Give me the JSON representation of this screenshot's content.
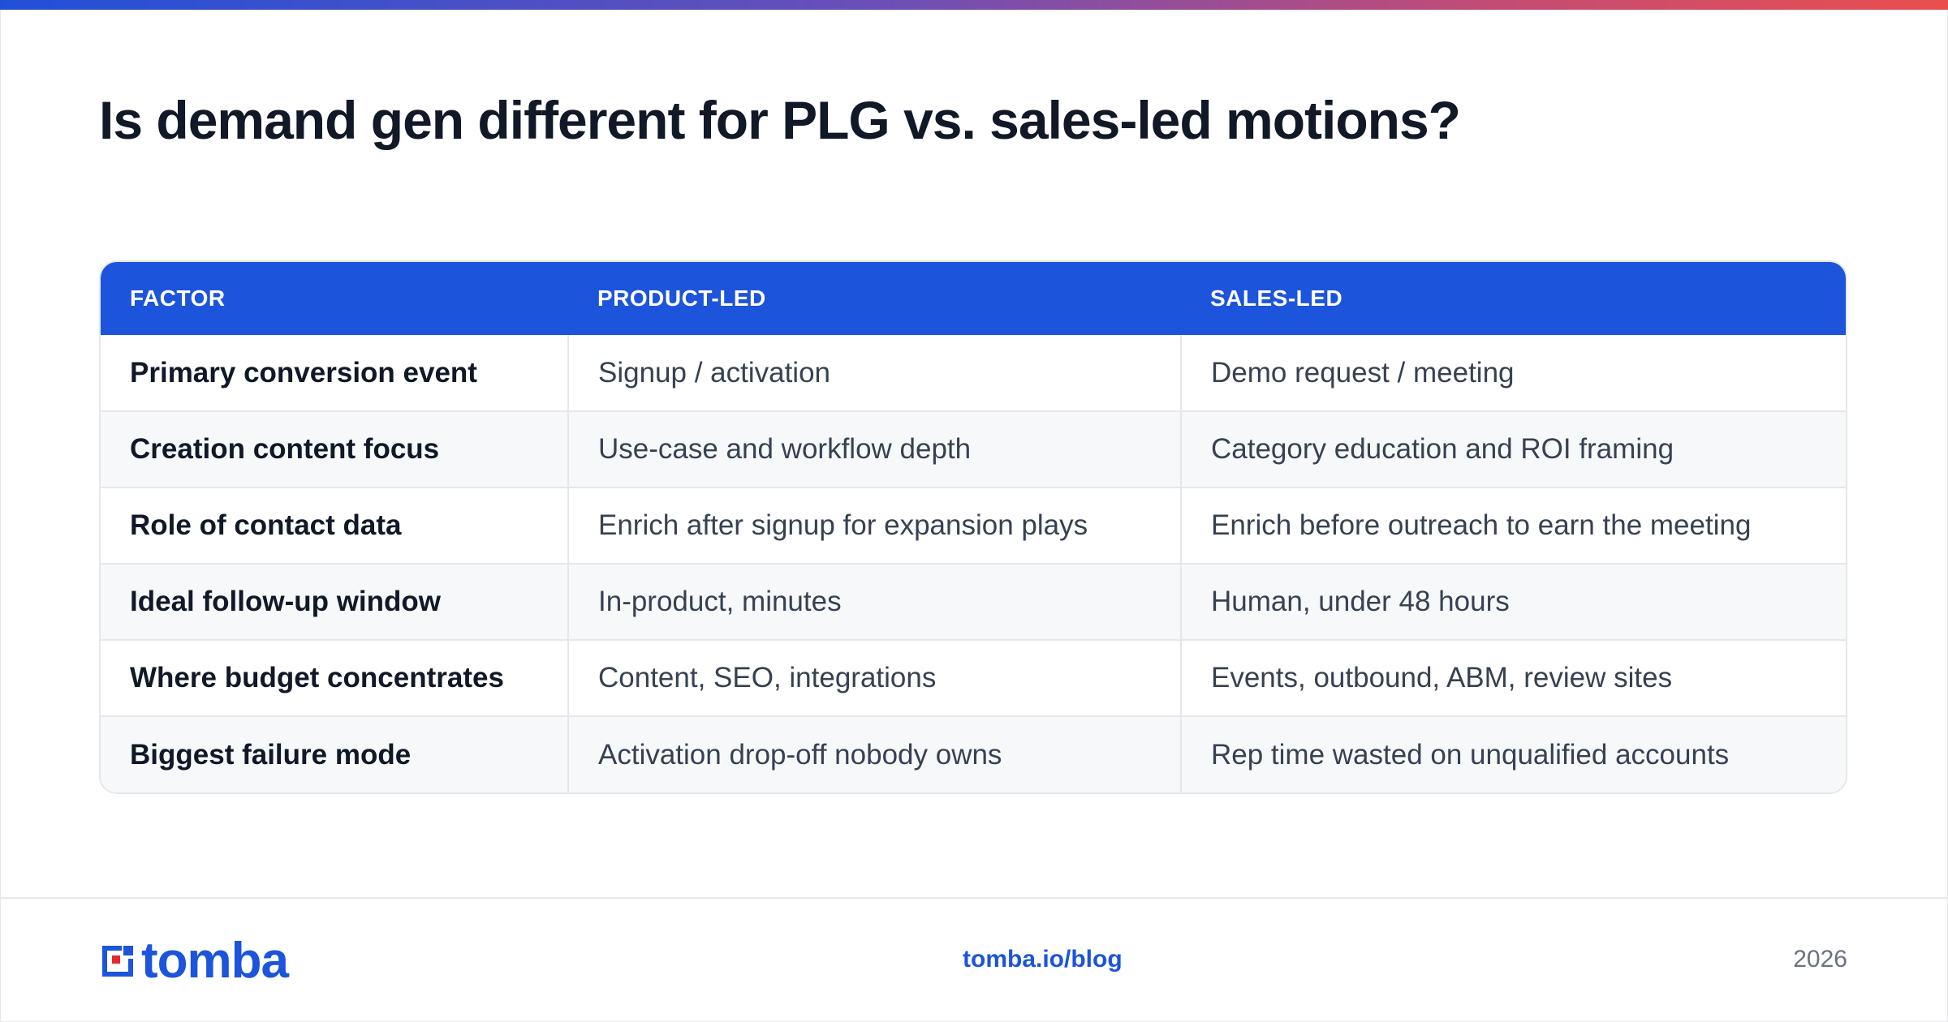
{
  "title": "Is demand gen different for PLG vs. sales-led motions?",
  "table": {
    "headers": [
      "FACTOR",
      "PRODUCT-LED",
      "SALES-LED"
    ],
    "rows": [
      [
        "Primary conversion event",
        "Signup / activation",
        "Demo request / meeting"
      ],
      [
        "Creation content focus",
        "Use-case and workflow depth",
        "Category education and ROI framing"
      ],
      [
        "Role of contact data",
        "Enrich after signup for expansion plays",
        "Enrich before outreach to earn the meeting"
      ],
      [
        "Ideal follow-up window",
        "In-product, minutes",
        "Human, under 48 hours"
      ],
      [
        "Where budget concentrates",
        "Content, SEO, integrations",
        "Events, outbound, ABM, review sites"
      ],
      [
        "Biggest failure mode",
        "Activation drop-off nobody owns",
        "Rep time wasted on unqualified accounts"
      ]
    ]
  },
  "footer": {
    "logo_text": "tomba",
    "logo_icon": "tomba-logo-icon",
    "link": "tomba.io/blog",
    "year": "2026"
  },
  "colors": {
    "accent": "#1c54db",
    "gradient_start": "#2150d8",
    "gradient_end": "#e94f4f",
    "logo_red": "#e3262f"
  }
}
